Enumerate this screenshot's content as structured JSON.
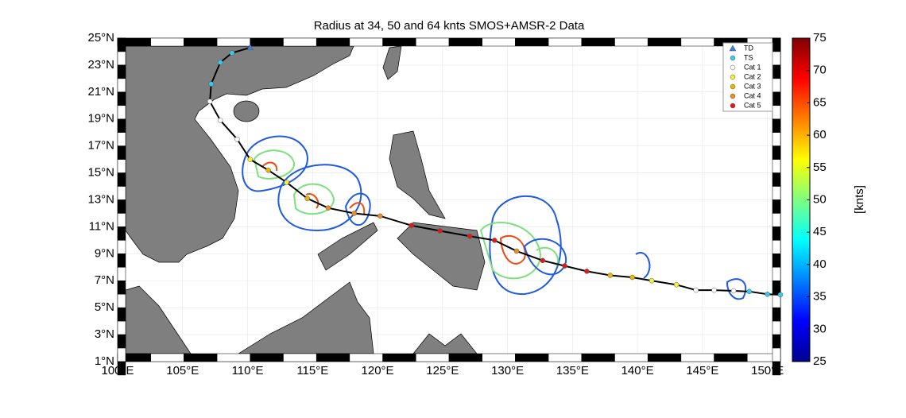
{
  "chart_data": {
    "type": "map",
    "title": "Radius at 34, 50 and 64 knts SMOS+AMSR-2 Data",
    "xlim": [
      100,
      151
    ],
    "ylim": [
      1,
      25
    ],
    "xticks": [
      {
        "value": 100,
        "label": "100°E"
      },
      {
        "value": 105,
        "label": "105°E"
      },
      {
        "value": 110,
        "label": "110°E"
      },
      {
        "value": 115,
        "label": "115°E"
      },
      {
        "value": 120,
        "label": "120°E"
      },
      {
        "value": 125,
        "label": "125°E"
      },
      {
        "value": 130,
        "label": "130°E"
      },
      {
        "value": 135,
        "label": "135°E"
      },
      {
        "value": 140,
        "label": "140°E"
      },
      {
        "value": 145,
        "label": "145°E"
      },
      {
        "value": 150,
        "label": "150°E"
      }
    ],
    "yticks": [
      {
        "value": 1,
        "label": "1°N"
      },
      {
        "value": 3,
        "label": "3°N"
      },
      {
        "value": 5,
        "label": "5°N"
      },
      {
        "value": 7,
        "label": "7°N"
      },
      {
        "value": 9,
        "label": "9°N"
      },
      {
        "value": 11,
        "label": "11°N"
      },
      {
        "value": 13,
        "label": "13°N"
      },
      {
        "value": 15,
        "label": "15°N"
      },
      {
        "value": 17,
        "label": "17°N"
      },
      {
        "value": 19,
        "label": "19°N"
      },
      {
        "value": 21,
        "label": "21°N"
      },
      {
        "value": 23,
        "label": "23°N"
      },
      {
        "value": 25,
        "label": "25°N"
      }
    ],
    "legend": [
      {
        "name": "TD",
        "color": "#3b7fe0",
        "marker": "triangle"
      },
      {
        "name": "TS",
        "color": "#33ccee",
        "marker": "circle"
      },
      {
        "name": "Cat 1",
        "color": "#ffffff",
        "marker": "circle"
      },
      {
        "name": "Cat 2",
        "color": "#f2f230",
        "marker": "circle"
      },
      {
        "name": "Cat 3",
        "color": "#e6b800",
        "marker": "circle"
      },
      {
        "name": "Cat 4",
        "color": "#f08c1a",
        "marker": "circle"
      },
      {
        "name": "Cat 5",
        "color": "#e01a1a",
        "marker": "circle"
      }
    ],
    "track": {
      "lon": [
        151.0,
        150.0,
        148.6,
        147.4,
        145.9,
        144.5,
        143.0,
        141.1,
        139.6,
        137.9,
        136.1,
        134.4,
        132.7,
        130.7,
        129.0,
        127.1,
        124.8,
        122.6,
        120.2,
        118.2,
        116.2,
        114.6,
        113.0,
        111.6,
        110.2,
        109.2,
        107.9,
        107.1,
        107.2,
        107.9,
        108.8,
        110.2
      ],
      "lat": [
        5.96,
        6.0,
        6.2,
        6.25,
        6.3,
        6.3,
        6.7,
        7.0,
        7.25,
        7.4,
        7.7,
        8.1,
        8.5,
        9.2,
        10.0,
        10.3,
        10.7,
        11.1,
        11.8,
        12.0,
        12.4,
        13.1,
        14.3,
        15.2,
        16.0,
        17.5,
        18.9,
        20.3,
        21.6,
        23.2,
        23.9,
        24.3
      ],
      "category": [
        1,
        1,
        1,
        2,
        2,
        2,
        3,
        3,
        4,
        4,
        6,
        6,
        6,
        5,
        6,
        6,
        6,
        6,
        5,
        5,
        5,
        4,
        3,
        4,
        3,
        2,
        2,
        2,
        1,
        1,
        1,
        0
      ]
    },
    "colorbar": {
      "label": "[knts]",
      "lim": [
        25,
        75
      ],
      "ticks": [
        25,
        30,
        35,
        40,
        45,
        50,
        55,
        60,
        65,
        70,
        75
      ]
    }
  }
}
